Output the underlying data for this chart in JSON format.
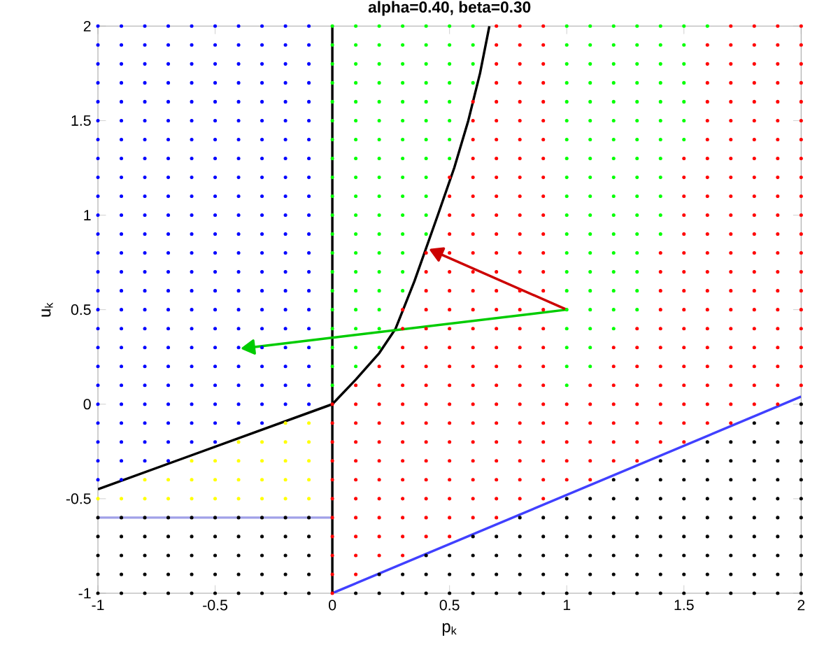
{
  "chart_data": {
    "type": "scatter",
    "title": "alpha=0.40, beta=0.30",
    "xlabel": "p$_{k}$",
    "ylabel": "u$_{k}$",
    "xlim": [
      -1,
      2
    ],
    "ylim": [
      -1,
      2
    ],
    "xticks": [
      -1,
      -0.5,
      0,
      0.5,
      1,
      1.5,
      2
    ],
    "yticks": [
      -1,
      -0.5,
      0,
      0.5,
      1,
      1.5,
      2
    ],
    "series": [
      {
        "marker": "circle",
        "color": "#000000",
        "x": [
          -1,
          -0.9,
          -0.8,
          -0.7,
          -0.6,
          -0.5,
          -0.4,
          -0.3,
          -0.2,
          -0.1,
          0.1,
          0.2,
          0.3,
          0.4,
          0.5,
          0.6,
          0.7,
          0.8,
          0.9,
          1,
          1.1,
          1.2,
          1.3,
          1.4,
          1.5,
          1.6,
          1.7,
          1.8,
          1.9,
          2,
          -1,
          -0.9,
          -0.8,
          -0.7,
          -0.6,
          -0.5,
          -0.4,
          -0.3,
          -0.2,
          -0.1,
          0.2,
          0.3,
          0.4,
          0.5,
          0.6,
          0.7,
          0.8,
          0.9,
          1,
          1.1,
          1.2,
          1.3,
          1.4,
          1.5,
          1.6,
          1.7,
          1.8,
          1.9,
          2,
          -1,
          -0.9,
          -0.8,
          -0.7,
          -0.6,
          -0.5,
          -0.4,
          -0.3,
          -0.2,
          -0.1,
          0.4,
          0.5,
          0.6,
          0.7,
          0.8,
          0.9,
          1,
          1.1,
          1.2,
          1.3,
          1.4,
          1.5,
          1.6,
          1.7,
          1.8,
          1.9,
          2,
          -1,
          -0.9,
          -0.8,
          -0.7,
          -0.6,
          -0.5,
          -0.4,
          -0.3,
          -0.2,
          -0.1,
          0.6,
          0.7,
          0.8,
          0.9,
          1,
          1.1,
          1.2,
          1.3,
          1.4,
          1.5,
          1.6,
          1.7,
          1.8,
          1.9,
          2,
          -1,
          -0.9,
          -0.8,
          -0.7,
          -0.6,
          -0.5,
          -0.4,
          -0.3,
          -0.2,
          -0.1,
          0.8,
          0.9,
          1,
          1.1,
          1.2,
          1.3,
          1.4,
          1.5,
          1.6,
          1.7,
          1.8,
          1.9,
          2,
          1,
          1.1,
          1.2,
          1.3,
          1.4,
          1.5,
          1.6,
          1.7,
          1.8,
          1.9,
          2,
          1.2,
          1.3,
          1.4,
          1.5,
          1.6,
          1.7,
          1.8,
          1.9,
          2,
          1.4,
          1.5,
          1.6,
          1.7,
          1.8,
          1.9,
          2,
          1.6,
          1.7,
          1.8,
          1.9,
          2,
          1.8,
          1.9,
          2,
          2
        ],
        "values": [
          -1,
          -1,
          -1,
          -1,
          -1,
          -1,
          -1,
          -1,
          -1,
          -1,
          -1,
          -1,
          -1,
          -1,
          -1,
          -1,
          -1,
          -1,
          -1,
          -1,
          -1,
          -1,
          -1,
          -1,
          -1,
          -1,
          -1,
          -1,
          -1,
          -1,
          -0.9,
          -0.9,
          -0.9,
          -0.9,
          -0.9,
          -0.9,
          -0.9,
          -0.9,
          -0.9,
          -0.9,
          -0.9,
          -0.9,
          -0.9,
          -0.9,
          -0.9,
          -0.9,
          -0.9,
          -0.9,
          -0.9,
          -0.9,
          -0.9,
          -0.9,
          -0.9,
          -0.9,
          -0.9,
          -0.9,
          -0.9,
          -0.9,
          -0.9,
          -0.8,
          -0.8,
          -0.8,
          -0.8,
          -0.8,
          -0.8,
          -0.8,
          -0.8,
          -0.8,
          -0.8,
          -0.8,
          -0.8,
          -0.8,
          -0.8,
          -0.8,
          -0.8,
          -0.8,
          -0.8,
          -0.8,
          -0.8,
          -0.8,
          -0.8,
          -0.8,
          -0.8,
          -0.8,
          -0.8,
          -0.8,
          -0.7,
          -0.7,
          -0.7,
          -0.7,
          -0.7,
          -0.7,
          -0.7,
          -0.7,
          -0.7,
          -0.7,
          -0.7,
          -0.7,
          -0.7,
          -0.7,
          -0.7,
          -0.7,
          -0.7,
          -0.7,
          -0.7,
          -0.7,
          -0.7,
          -0.7,
          -0.7,
          -0.7,
          -0.7,
          -0.6,
          -0.6,
          -0.6,
          -0.6,
          -0.6,
          -0.6,
          -0.6,
          -0.6,
          -0.6,
          -0.6,
          -0.6,
          -0.6,
          -0.6,
          -0.6,
          -0.6,
          -0.6,
          -0.6,
          -0.6,
          -0.6,
          -0.6,
          -0.6,
          -0.6,
          -0.6,
          -0.5,
          -0.5,
          -0.5,
          -0.5,
          -0.5,
          -0.5,
          -0.5,
          -0.5,
          -0.5,
          -0.5,
          -0.5,
          -0.4,
          -0.4,
          -0.4,
          -0.4,
          -0.4,
          -0.4,
          -0.4,
          -0.4,
          -0.4,
          -0.3,
          -0.3,
          -0.3,
          -0.3,
          -0.3,
          -0.3,
          -0.3,
          -0.2,
          -0.2,
          -0.2,
          -0.2,
          -0.2,
          -0.1,
          -0.1,
          -0.1,
          0
        ]
      },
      {
        "marker": "circle",
        "color": "#ffff00",
        "x": [
          -1,
          -0.9,
          -0.8,
          -0.7,
          -0.6,
          -0.5,
          -0.4,
          -0.3,
          -0.2,
          -0.1,
          -0.8,
          -0.7,
          -0.6,
          -0.5,
          -0.4,
          -0.3,
          -0.2,
          -0.1,
          -0.6,
          -0.5,
          -0.4,
          -0.3,
          -0.2,
          -0.1,
          -0.4,
          -0.3,
          -0.2,
          -0.1,
          -0.2,
          -0.1
        ],
        "values": [
          -0.5,
          -0.5,
          -0.5,
          -0.5,
          -0.5,
          -0.5,
          -0.5,
          -0.5,
          -0.5,
          -0.5,
          -0.4,
          -0.4,
          -0.4,
          -0.4,
          -0.4,
          -0.4,
          -0.4,
          -0.4,
          -0.3,
          -0.3,
          -0.3,
          -0.3,
          -0.3,
          -0.3,
          -0.2,
          -0.2,
          -0.2,
          -0.2,
          -0.1,
          -0.1
        ]
      },
      {
        "marker": "circle",
        "color": "#0000ff",
        "x": [
          -1,
          -0.9,
          -1,
          -0.9,
          -0.8,
          -0.7,
          -1,
          -0.9,
          -0.8,
          -0.7,
          -0.6,
          -0.5,
          -1,
          -0.9,
          -0.8,
          -0.7,
          -0.6,
          -0.5,
          -0.4,
          -0.3,
          -1,
          -0.9,
          -0.8,
          -0.7,
          -0.6,
          -0.5,
          -0.4,
          -0.3,
          -0.2,
          -0.1,
          -1,
          -0.9,
          -0.8,
          -0.7,
          -0.6,
          -0.5,
          -0.4,
          -0.3,
          -0.2,
          -0.1,
          -1,
          -0.9,
          -0.8,
          -0.7,
          -0.6,
          -0.5,
          -0.4,
          -0.3,
          -0.2,
          -0.1,
          -1,
          -0.9,
          -0.8,
          -0.7,
          -0.6,
          -0.5,
          -0.4,
          -0.3,
          -0.2,
          -0.1,
          -1,
          -0.9,
          -0.8,
          -0.7,
          -0.6,
          -0.5,
          -0.4,
          -0.3,
          -0.2,
          -0.1,
          -1,
          -0.9,
          -0.8,
          -0.7,
          -0.6,
          -0.5,
          -0.4,
          -0.3,
          -0.2,
          -0.1,
          -1,
          -0.9,
          -0.8,
          -0.7,
          -0.6,
          -0.5,
          -0.4,
          -0.3,
          -0.2,
          -0.1,
          -1,
          -0.9,
          -0.8,
          -0.7,
          -0.6,
          -0.5,
          -0.4,
          -0.3,
          -0.2,
          -0.1,
          -1,
          -0.9,
          -0.8,
          -0.7,
          -0.6,
          -0.5,
          -0.4,
          -0.3,
          -0.2,
          -0.1,
          -1,
          -0.9,
          -0.8,
          -0.7,
          -0.6,
          -0.5,
          -0.4,
          -0.3,
          -0.2,
          -0.1,
          -1,
          -0.9,
          -0.8,
          -0.7,
          -0.6,
          -0.5,
          -0.4,
          -0.3,
          -0.2,
          -0.1,
          -1,
          -0.9,
          -0.8,
          -0.7,
          -0.6,
          -0.5,
          -0.4,
          -0.3,
          -0.2,
          -0.1,
          -1,
          -0.9,
          -0.8,
          -0.7,
          -0.6,
          -0.5,
          -0.4,
          -0.3,
          -0.2,
          -0.1,
          -1,
          -0.9,
          -0.8,
          -0.7,
          -0.6,
          -0.5,
          -0.4,
          -0.3,
          -0.2,
          -0.1,
          -1,
          -0.9,
          -0.8,
          -0.7,
          -0.6,
          -0.5,
          -0.4,
          -0.3,
          -0.2,
          -0.1,
          -1,
          -0.9,
          -0.8,
          -0.7,
          -0.6,
          -0.5,
          -0.4,
          -0.3,
          -0.2,
          -0.1,
          -1,
          -0.9,
          -0.8,
          -0.7,
          -0.6,
          -0.5,
          -0.4,
          -0.3,
          -0.2,
          -0.1,
          -1,
          -0.9,
          -0.8,
          -0.7,
          -0.6,
          -0.5,
          -0.4,
          -0.3,
          -0.2,
          -0.1,
          -1,
          -0.9,
          -0.8,
          -0.7,
          -0.6,
          -0.5,
          -0.4,
          -0.3,
          -0.2,
          -0.1,
          -1,
          -0.9,
          -0.8,
          -0.7,
          -0.6,
          -0.5,
          -0.4,
          -0.3,
          -0.2,
          -0.1,
          -1,
          -0.9,
          -0.8,
          -0.7,
          -0.6,
          -0.5,
          -0.4,
          -0.3,
          -0.2,
          -0.1
        ],
        "values": [
          -0.4,
          -0.4,
          -0.3,
          -0.3,
          -0.3,
          -0.3,
          -0.2,
          -0.2,
          -0.2,
          -0.2,
          -0.2,
          -0.2,
          -0.1,
          -0.1,
          -0.1,
          -0.1,
          -0.1,
          -0.1,
          -0.1,
          -0.1,
          0,
          0,
          0,
          0,
          0,
          0,
          0,
          0,
          0,
          0,
          0.1,
          0.1,
          0.1,
          0.1,
          0.1,
          0.1,
          0.1,
          0.1,
          0.1,
          0.1,
          0.2,
          0.2,
          0.2,
          0.2,
          0.2,
          0.2,
          0.2,
          0.2,
          0.2,
          0.2,
          0.3,
          0.3,
          0.3,
          0.3,
          0.3,
          0.3,
          0.3,
          0.3,
          0.3,
          0.3,
          0.4,
          0.4,
          0.4,
          0.4,
          0.4,
          0.4,
          0.4,
          0.4,
          0.4,
          0.4,
          0.5,
          0.5,
          0.5,
          0.5,
          0.5,
          0.5,
          0.5,
          0.5,
          0.5,
          0.5,
          0.6,
          0.6,
          0.6,
          0.6,
          0.6,
          0.6,
          0.6,
          0.6,
          0.6,
          0.6,
          0.7,
          0.7,
          0.7,
          0.7,
          0.7,
          0.7,
          0.7,
          0.7,
          0.7,
          0.7,
          0.8,
          0.8,
          0.8,
          0.8,
          0.8,
          0.8,
          0.8,
          0.8,
          0.8,
          0.8,
          0.9,
          0.9,
          0.9,
          0.9,
          0.9,
          0.9,
          0.9,
          0.9,
          0.9,
          0.9,
          1,
          1,
          1,
          1,
          1,
          1,
          1,
          1,
          1,
          1,
          1.1,
          1.1,
          1.1,
          1.1,
          1.1,
          1.1,
          1.1,
          1.1,
          1.1,
          1.1,
          1.2,
          1.2,
          1.2,
          1.2,
          1.2,
          1.2,
          1.2,
          1.2,
          1.2,
          1.2,
          1.3,
          1.3,
          1.3,
          1.3,
          1.3,
          1.3,
          1.3,
          1.3,
          1.3,
          1.3,
          1.4,
          1.4,
          1.4,
          1.4,
          1.4,
          1.4,
          1.4,
          1.4,
          1.4,
          1.4,
          1.5,
          1.5,
          1.5,
          1.5,
          1.5,
          1.5,
          1.5,
          1.5,
          1.5,
          1.5,
          1.6,
          1.6,
          1.6,
          1.6,
          1.6,
          1.6,
          1.6,
          1.6,
          1.6,
          1.6,
          1.7,
          1.7,
          1.7,
          1.7,
          1.7,
          1.7,
          1.7,
          1.7,
          1.7,
          1.7,
          1.8,
          1.8,
          1.8,
          1.8,
          1.8,
          1.8,
          1.8,
          1.8,
          1.8,
          1.8,
          1.9,
          1.9,
          1.9,
          1.9,
          1.9,
          1.9,
          1.9,
          1.9,
          1.9,
          1.9,
          2,
          2,
          2,
          2,
          2,
          2,
          2,
          2,
          2,
          2
        ]
      },
      {
        "marker": "circle",
        "color": "#ff0000",
        "x": [
          0,
          0,
          0.1,
          0,
          0.1,
          0.2,
          0.3,
          0,
          0.1,
          0.2,
          0.3,
          0.4,
          0.5,
          0,
          0.1,
          0.2,
          0.3,
          0.4,
          0.5,
          0.6,
          0.7,
          0,
          0.1,
          0.2,
          0.3,
          0.4,
          0.5,
          0.6,
          0.7,
          0.8,
          0.9,
          0,
          0.1,
          0.2,
          0.3,
          0.4,
          0.5,
          0.6,
          0.7,
          0.8,
          0.9,
          1,
          1.1,
          0,
          0.1,
          0.2,
          0.3,
          0.4,
          0.5,
          0.6,
          0.7,
          0.8,
          0.9,
          1,
          1.1,
          1.2,
          1.3,
          0,
          0.1,
          0.2,
          0.3,
          0.4,
          0.5,
          0.6,
          0.7,
          0.8,
          0.9,
          1,
          1.1,
          1.2,
          1.3,
          1.4,
          1.5,
          0,
          0.1,
          0.2,
          0.3,
          0.4,
          0.5,
          0.6,
          0.7,
          0.8,
          0.9,
          1,
          1.1,
          1.2,
          1.3,
          1.4,
          1.5,
          1.6,
          1.7,
          0,
          0.1,
          0.2,
          0.3,
          0.4,
          0.5,
          0.6,
          0.7,
          0.8,
          0.9,
          1,
          1.1,
          1.2,
          1.3,
          1.4,
          1.5,
          1.6,
          1.7,
          1.8,
          1.9,
          0.1,
          0.2,
          0.3,
          0.4,
          0.5,
          0.6,
          0.7,
          0.8,
          0.9,
          1.1,
          1.2,
          1.3,
          1.4,
          1.5,
          1.6,
          1.7,
          1.8,
          1.9,
          2,
          0.2,
          0.3,
          0.4,
          0.5,
          0.6,
          0.7,
          0.8,
          0.9,
          1.2,
          1.3,
          1.4,
          1.5,
          1.6,
          1.7,
          1.8,
          1.9,
          2,
          0.3,
          0.4,
          0.5,
          0.6,
          0.7,
          0.8,
          0.9,
          1.2,
          1.3,
          1.4,
          1.5,
          1.6,
          1.7,
          1.8,
          1.9,
          2,
          0.3,
          0.4,
          0.5,
          0.6,
          0.7,
          0.8,
          0.9,
          1.3,
          1.4,
          1.5,
          1.6,
          1.7,
          1.8,
          1.9,
          2,
          0.3,
          0.4,
          0.5,
          0.6,
          0.7,
          0.8,
          0.9,
          1.4,
          1.5,
          1.6,
          1.7,
          1.8,
          1.9,
          2,
          0.4,
          0.5,
          0.6,
          0.7,
          0.8,
          0.9,
          1.4,
          1.5,
          1.6,
          1.7,
          1.8,
          1.9,
          2,
          0.4,
          0.5,
          0.6,
          0.7,
          0.8,
          0.9,
          1.4,
          1.5,
          1.6,
          1.7,
          1.8,
          1.9,
          2,
          0.4,
          0.5,
          0.6,
          0.7,
          0.8,
          0.9,
          1.4,
          1.5,
          1.6,
          1.7,
          1.8,
          1.9,
          2,
          0.5,
          0.6,
          0.7,
          0.8,
          0.9,
          1.5,
          1.6,
          1.7,
          1.8,
          1.9,
          2,
          0.5,
          0.6,
          0.7,
          0.8,
          0.9,
          1.5,
          1.6,
          1.7,
          1.8,
          1.9,
          2,
          0.5,
          0.6,
          0.7,
          0.8,
          0.9,
          1.5,
          1.6,
          1.7,
          1.8,
          1.9,
          2,
          0.5,
          0.6,
          0.7,
          0.8,
          0.9,
          1.5,
          1.6,
          1.7,
          1.8,
          1.9,
          2,
          0.6,
          0.7,
          0.8,
          0.9,
          1.5,
          1.6,
          1.7,
          1.8,
          1.9,
          2,
          0.6,
          0.7,
          0.8,
          0.9,
          1.6,
          1.7,
          1.8,
          1.9,
          2,
          0.6,
          0.7,
          0.8,
          0.9,
          1.6,
          1.7,
          1.8,
          1.9,
          2,
          0.6,
          0.7,
          0.8,
          0.9,
          1.6,
          1.7,
          1.8,
          1.9,
          2,
          0.7,
          0.8,
          0.9,
          1.6,
          1.7,
          1.8,
          1.9,
          2,
          0.7,
          0.8,
          0.9,
          1.6,
          1.7,
          1.8,
          1.9,
          2,
          0.7,
          0.8,
          0.9,
          1.6,
          1.7,
          1.8,
          1.9,
          2,
          0.7,
          0.8,
          0.9,
          1.7,
          1.8,
          1.9,
          2
        ],
        "values": [
          -1,
          -0.9,
          -0.9,
          -0.8,
          -0.8,
          -0.8,
          -0.8,
          -0.7,
          -0.7,
          -0.7,
          -0.7,
          -0.7,
          -0.7,
          -0.6,
          -0.6,
          -0.6,
          -0.6,
          -0.6,
          -0.6,
          -0.6,
          -0.6,
          -0.5,
          -0.5,
          -0.5,
          -0.5,
          -0.5,
          -0.5,
          -0.5,
          -0.5,
          -0.5,
          -0.5,
          -0.4,
          -0.4,
          -0.4,
          -0.4,
          -0.4,
          -0.4,
          -0.4,
          -0.4,
          -0.4,
          -0.4,
          -0.4,
          -0.4,
          -0.3,
          -0.3,
          -0.3,
          -0.3,
          -0.3,
          -0.3,
          -0.3,
          -0.3,
          -0.3,
          -0.3,
          -0.3,
          -0.3,
          -0.3,
          -0.3,
          -0.2,
          -0.2,
          -0.2,
          -0.2,
          -0.2,
          -0.2,
          -0.2,
          -0.2,
          -0.2,
          -0.2,
          -0.2,
          -0.2,
          -0.2,
          -0.2,
          -0.2,
          -0.2,
          -0.1,
          -0.1,
          -0.1,
          -0.1,
          -0.1,
          -0.1,
          -0.1,
          -0.1,
          -0.1,
          -0.1,
          -0.1,
          -0.1,
          -0.1,
          -0.1,
          -0.1,
          -0.1,
          -0.1,
          -0.1,
          0,
          0,
          0,
          0,
          0,
          0,
          0,
          0,
          0,
          0,
          0,
          0,
          0,
          0,
          0,
          0,
          0,
          0,
          0,
          0,
          0.1,
          0.1,
          0.1,
          0.1,
          0.1,
          0.1,
          0.1,
          0.1,
          0.1,
          0.1,
          0.1,
          0.1,
          0.1,
          0.1,
          0.1,
          0.1,
          0.1,
          0.1,
          0.1,
          0.2,
          0.2,
          0.2,
          0.2,
          0.2,
          0.2,
          0.2,
          0.2,
          0.2,
          0.2,
          0.2,
          0.2,
          0.2,
          0.2,
          0.2,
          0.2,
          0.2,
          0.3,
          0.3,
          0.3,
          0.3,
          0.3,
          0.3,
          0.3,
          0.3,
          0.3,
          0.3,
          0.3,
          0.3,
          0.3,
          0.3,
          0.3,
          0.3,
          0.4,
          0.4,
          0.4,
          0.4,
          0.4,
          0.4,
          0.4,
          0.4,
          0.4,
          0.4,
          0.4,
          0.4,
          0.4,
          0.4,
          0.4,
          0.5,
          0.5,
          0.5,
          0.5,
          0.5,
          0.5,
          0.5,
          0.5,
          0.5,
          0.5,
          0.5,
          0.5,
          0.5,
          0.5,
          0.6,
          0.6,
          0.6,
          0.6,
          0.6,
          0.6,
          0.6,
          0.6,
          0.6,
          0.6,
          0.6,
          0.6,
          0.6,
          0.7,
          0.7,
          0.7,
          0.7,
          0.7,
          0.7,
          0.7,
          0.7,
          0.7,
          0.7,
          0.7,
          0.7,
          0.7,
          0.8,
          0.8,
          0.8,
          0.8,
          0.8,
          0.8,
          0.8,
          0.8,
          0.8,
          0.8,
          0.8,
          0.8,
          0.8,
          0.9,
          0.9,
          0.9,
          0.9,
          0.9,
          0.9,
          0.9,
          0.9,
          0.9,
          0.9,
          0.9,
          1,
          1,
          1,
          1,
          1,
          1,
          1,
          1,
          1,
          1,
          1,
          1.1,
          1.1,
          1.1,
          1.1,
          1.1,
          1.1,
          1.1,
          1.1,
          1.1,
          1.1,
          1.1,
          1.2,
          1.2,
          1.2,
          1.2,
          1.2,
          1.2,
          1.2,
          1.2,
          1.2,
          1.2,
          1.2,
          1.3,
          1.3,
          1.3,
          1.3,
          1.3,
          1.3,
          1.3,
          1.3,
          1.3,
          1.3,
          1.4,
          1.4,
          1.4,
          1.4,
          1.4,
          1.4,
          1.4,
          1.4,
          1.4,
          1.5,
          1.5,
          1.5,
          1.5,
          1.5,
          1.5,
          1.5,
          1.5,
          1.5,
          1.6,
          1.6,
          1.6,
          1.6,
          1.6,
          1.6,
          1.6,
          1.6,
          1.6,
          1.7,
          1.7,
          1.7,
          1.7,
          1.7,
          1.7,
          1.7,
          1.7,
          1.8,
          1.8,
          1.8,
          1.8,
          1.8,
          1.8,
          1.8,
          1.8,
          1.9,
          1.9,
          1.9,
          1.9,
          1.9,
          1.9,
          1.9,
          1.9,
          2,
          2,
          2,
          2,
          2,
          2,
          2
        ]
      },
      {
        "marker": "circle",
        "color": "#00ff00",
        "x": [
          0,
          1,
          0,
          0.1,
          1,
          1.1,
          0,
          0.1,
          0.2,
          1,
          1.1,
          0,
          0.1,
          0.2,
          1,
          1.1,
          1.2,
          0,
          0.1,
          0.2,
          1,
          1.1,
          1.2,
          1.3,
          0,
          0.1,
          0.2,
          0.3,
          1,
          1.1,
          1.2,
          1.3,
          0,
          0.1,
          0.2,
          0.3,
          1,
          1.1,
          1.2,
          1.3,
          0,
          0.1,
          0.2,
          0.3,
          1,
          1.1,
          1.2,
          1.3,
          0,
          0.1,
          0.2,
          0.3,
          0.4,
          1,
          1.1,
          1.2,
          1.3,
          1.4,
          0,
          0.1,
          0.2,
          0.3,
          0.4,
          1,
          1.1,
          1.2,
          1.3,
          1.4,
          0,
          0.1,
          0.2,
          0.3,
          0.4,
          1,
          1.1,
          1.2,
          1.3,
          1.4,
          0,
          0.1,
          0.2,
          0.3,
          0.4,
          1,
          1.1,
          1.2,
          1.3,
          1.4,
          0,
          0.1,
          0.2,
          0.3,
          0.4,
          0.5,
          1,
          1.1,
          1.2,
          1.3,
          1.4,
          0,
          0.1,
          0.2,
          0.3,
          0.4,
          0.5,
          1,
          1.1,
          1.2,
          1.3,
          1.4,
          1.5,
          0,
          0.1,
          0.2,
          0.3,
          0.4,
          0.5,
          1,
          1.1,
          1.2,
          1.3,
          1.4,
          1.5,
          0,
          0.1,
          0.2,
          0.3,
          0.4,
          0.5,
          1,
          1.1,
          1.2,
          1.3,
          1.4,
          1.5,
          0,
          0.1,
          0.2,
          0.3,
          0.4,
          0.5,
          0.6,
          1,
          1.1,
          1.2,
          1.3,
          1.4,
          1.5,
          0,
          0.1,
          0.2,
          0.3,
          0.4,
          0.5,
          0.6,
          1,
          1.1,
          1.2,
          1.3,
          1.4,
          1.5,
          0,
          0.1,
          0.2,
          0.3,
          0.4,
          0.5,
          0.6,
          1,
          1.1,
          1.2,
          1.3,
          1.4,
          1.5,
          0,
          0.1,
          0.2,
          0.3,
          0.4,
          0.5,
          0.6,
          1,
          1.1,
          1.2,
          1.3,
          1.4,
          1.5,
          1.6
        ],
        "values": [
          0.1,
          0.1,
          0.2,
          0.2,
          0.2,
          0.2,
          0.3,
          0.3,
          0.3,
          0.3,
          0.3,
          0.4,
          0.4,
          0.4,
          0.4,
          0.4,
          0.4,
          0.5,
          0.5,
          0.5,
          0.5,
          0.5,
          0.5,
          0.5,
          0.6,
          0.6,
          0.6,
          0.6,
          0.6,
          0.6,
          0.6,
          0.6,
          0.7,
          0.7,
          0.7,
          0.7,
          0.7,
          0.7,
          0.7,
          0.7,
          0.8,
          0.8,
          0.8,
          0.8,
          0.8,
          0.8,
          0.8,
          0.8,
          0.9,
          0.9,
          0.9,
          0.9,
          0.9,
          0.9,
          0.9,
          0.9,
          0.9,
          0.9,
          1,
          1,
          1,
          1,
          1,
          1,
          1,
          1,
          1,
          1,
          1.1,
          1.1,
          1.1,
          1.1,
          1.1,
          1.1,
          1.1,
          1.1,
          1.1,
          1.1,
          1.2,
          1.2,
          1.2,
          1.2,
          1.2,
          1.2,
          1.2,
          1.2,
          1.2,
          1.2,
          1.3,
          1.3,
          1.3,
          1.3,
          1.3,
          1.3,
          1.3,
          1.3,
          1.3,
          1.3,
          1.3,
          1.4,
          1.4,
          1.4,
          1.4,
          1.4,
          1.4,
          1.4,
          1.4,
          1.4,
          1.4,
          1.4,
          1.4,
          1.5,
          1.5,
          1.5,
          1.5,
          1.5,
          1.5,
          1.5,
          1.5,
          1.5,
          1.5,
          1.5,
          1.5,
          1.6,
          1.6,
          1.6,
          1.6,
          1.6,
          1.6,
          1.6,
          1.6,
          1.6,
          1.6,
          1.6,
          1.6,
          1.7,
          1.7,
          1.7,
          1.7,
          1.7,
          1.7,
          1.7,
          1.7,
          1.7,
          1.7,
          1.7,
          1.7,
          1.7,
          1.8,
          1.8,
          1.8,
          1.8,
          1.8,
          1.8,
          1.8,
          1.8,
          1.8,
          1.8,
          1.8,
          1.8,
          1.8,
          1.9,
          1.9,
          1.9,
          1.9,
          1.9,
          1.9,
          1.9,
          1.9,
          1.9,
          1.9,
          1.9,
          1.9,
          1.9,
          2,
          2,
          2,
          2,
          2,
          2,
          2,
          2,
          2,
          2,
          2,
          2,
          2,
          2
        ]
      },
      {
        "type": "line",
        "color": "#a0a0e8",
        "x": [
          -1,
          0
        ],
        "values": [
          -0.6,
          -0.6
        ]
      },
      {
        "type": "line",
        "color": "#4040ff",
        "x": [
          0,
          2
        ],
        "values": [
          -1,
          0.04
        ]
      },
      {
        "type": "line",
        "color": "#000000",
        "x": [
          0,
          0
        ],
        "values": [
          -1,
          2
        ]
      },
      {
        "type": "line",
        "color": "#000000",
        "x": [
          -1,
          -0.8,
          -0.6,
          -0.4,
          -0.2,
          0,
          0.1,
          0.2,
          0.27,
          0.35,
          0.45,
          0.52,
          0.58,
          0.63,
          0.67
        ],
        "values": [
          -0.45,
          -0.36,
          -0.27,
          -0.18,
          -0.09,
          0,
          0.13,
          0.27,
          0.4,
          0.65,
          1,
          1.25,
          1.5,
          1.75,
          2
        ]
      },
      {
        "type": "line",
        "color": "#00cc00",
        "marker": "triangle",
        "x": [
          1,
          -0.35
        ],
        "values": [
          0.5,
          0.3
        ]
      },
      {
        "type": "line",
        "color": "#cc0000",
        "marker": "triangle",
        "x": [
          1,
          0.45
        ],
        "values": [
          0.5,
          0.8
        ]
      }
    ]
  }
}
